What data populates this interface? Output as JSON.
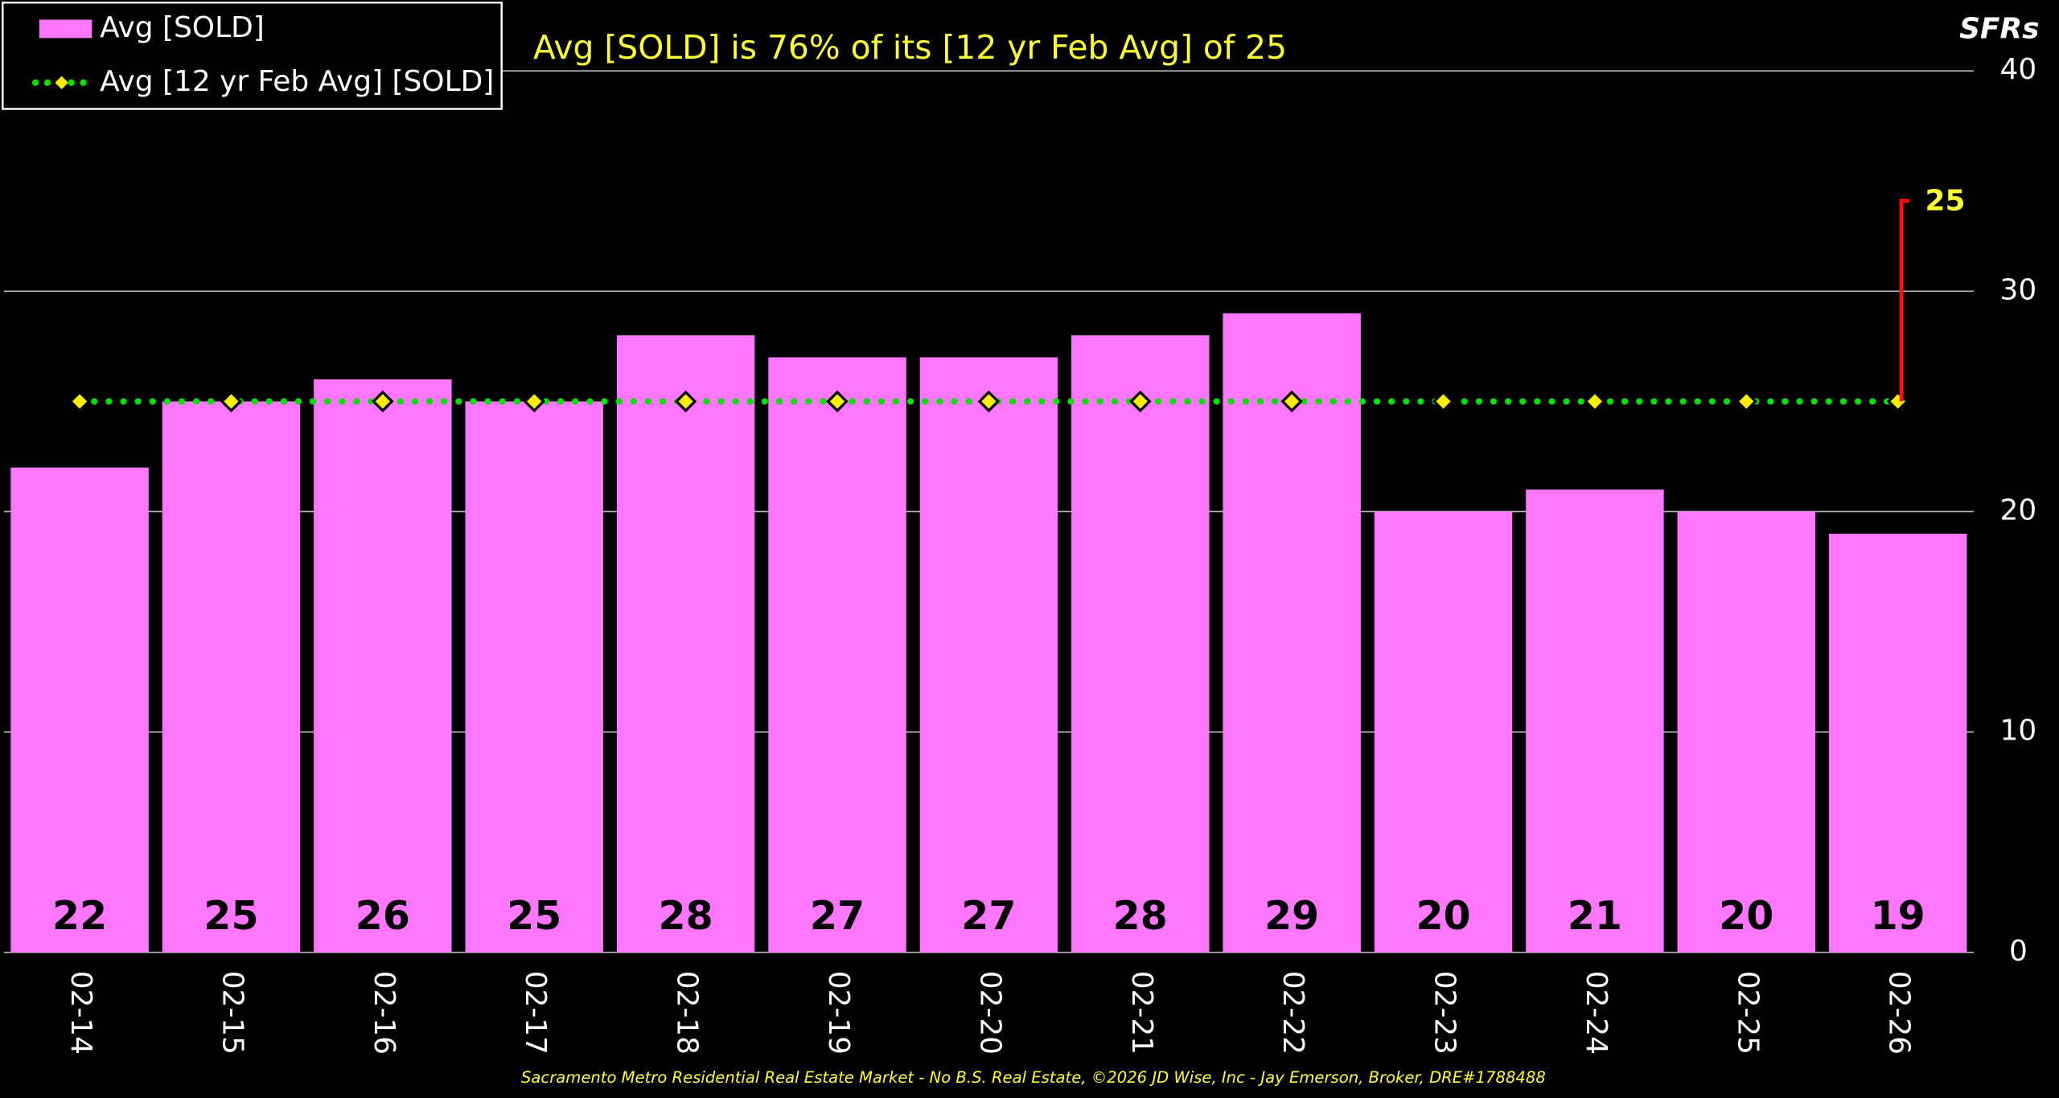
{
  "chart_data": {
    "type": "bar",
    "title": "Avg [SOLD] is 76% of its [12 yr Feb Avg] of 25",
    "y_label": "SFRs",
    "footer": "Sacramento Metro Residential Real Estate Market - No B.S. Real Estate, ©2026 JD Wise, Inc - Jay Emerson, Broker, DRE#1788488",
    "categories": [
      "02-14",
      "02-15",
      "02-16",
      "02-17",
      "02-18",
      "02-19",
      "02-20",
      "02-21",
      "02-22",
      "02-23",
      "02-24",
      "02-25",
      "02-26"
    ],
    "series": [
      {
        "name": "Avg [SOLD]",
        "type": "bar",
        "color": "#ff77ff",
        "values": [
          22,
          25,
          26,
          25,
          28,
          27,
          27,
          28,
          29,
          20,
          21,
          20,
          19
        ]
      },
      {
        "name": "Avg [12 yr Feb Avg] [SOLD]",
        "type": "line",
        "color": "#00e000",
        "marker_color": "#ffee00",
        "values": [
          25,
          25,
          25,
          25,
          25,
          25,
          25,
          25,
          25,
          25,
          25,
          25,
          25
        ]
      }
    ],
    "ylim": [
      0,
      40
    ],
    "yticks": [
      0,
      10,
      20,
      30,
      40
    ],
    "grid": true,
    "legend": "upper left"
  }
}
